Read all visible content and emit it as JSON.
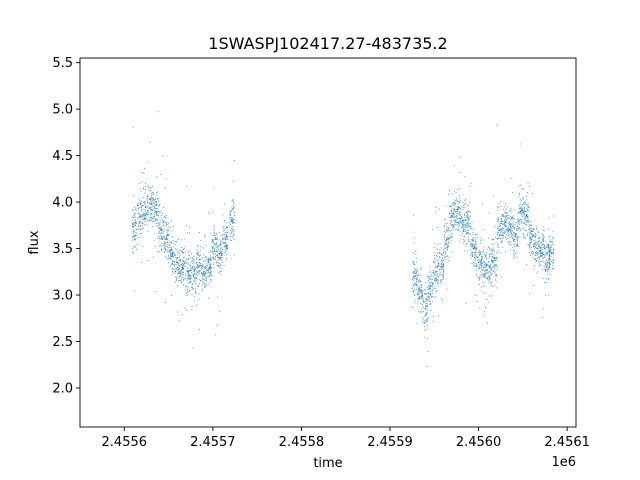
{
  "chart_data": {
    "type": "scatter",
    "title": "1SWASPJ102417.27-483735.2",
    "xlabel": "time",
    "ylabel": "flux",
    "x_offset_label": "1e6",
    "xlim": [
      2.45555,
      2.45611
    ],
    "ylim": [
      1.58,
      5.55
    ],
    "x_ticks": [
      2.4556,
      2.4557,
      2.4558,
      2.4559,
      2.456,
      2.4561
    ],
    "x_tick_labels": [
      "2.4556",
      "2.4557",
      "2.4558",
      "2.4559",
      "2.4560",
      "2.4561"
    ],
    "y_ticks": [
      2.0,
      2.5,
      3.0,
      3.5,
      4.0,
      4.5,
      5.0,
      5.5
    ],
    "y_tick_labels": [
      "2.0",
      "2.5",
      "3.0",
      "3.5",
      "4.0",
      "4.5",
      "5.0",
      "5.5"
    ],
    "grid": false,
    "marker_color": "#1f77b4",
    "series": [
      {
        "name": "",
        "x": [
          2.455612,
          2.455618,
          2.455624,
          2.45563,
          2.455636,
          2.455642,
          2.455648,
          2.455654,
          2.45566,
          2.455666,
          2.455672,
          2.455678,
          2.455684,
          2.45569,
          2.455696,
          2.455702,
          2.455708,
          2.455714,
          2.455722,
          2.455928,
          2.455934,
          2.45594,
          2.455946,
          2.455952,
          2.455958,
          2.455964,
          2.45597,
          2.455976,
          2.455982,
          2.455988,
          2.455994,
          2.456,
          2.456006,
          2.456012,
          2.456018,
          2.456024,
          2.45603,
          2.456036,
          2.456042,
          2.456048,
          2.456054,
          2.45606,
          2.456066,
          2.456072,
          2.456078,
          2.456082
        ],
        "y": [
          3.75,
          3.85,
          3.95,
          3.98,
          3.9,
          3.7,
          3.6,
          3.45,
          3.35,
          3.3,
          3.25,
          3.2,
          3.3,
          3.25,
          3.3,
          3.55,
          3.45,
          3.6,
          3.8,
          3.2,
          3.05,
          2.85,
          3.1,
          3.25,
          3.3,
          3.6,
          3.85,
          3.9,
          3.8,
          3.75,
          3.5,
          3.35,
          3.3,
          3.3,
          3.4,
          3.7,
          3.75,
          3.7,
          3.65,
          3.9,
          3.85,
          3.6,
          3.5,
          3.45,
          3.35,
          3.45
        ]
      }
    ]
  }
}
